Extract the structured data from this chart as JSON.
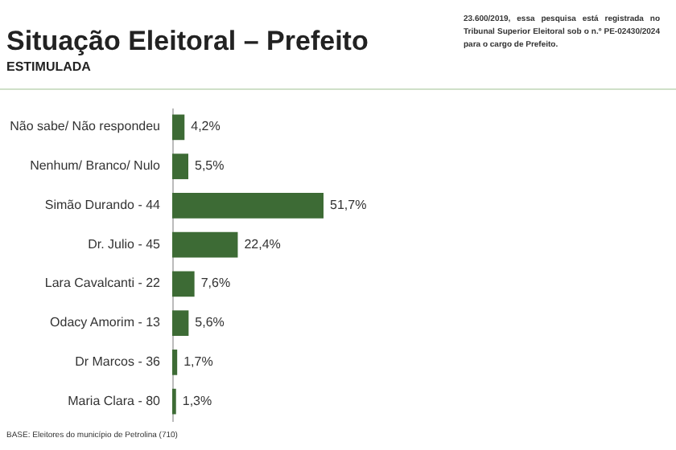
{
  "chart_data": {
    "type": "bar",
    "orientation": "horizontal",
    "title": "Situação Eleitoral – Prefeito",
    "subtitle": "ESTIMULADA",
    "categories": [
      "Não sabe/ Não respondeu",
      "Nenhum/ Branco/ Nulo",
      "Simão Durando - 44",
      "Dr. Julio - 45",
      "Lara Cavalcanti - 22",
      "Odacy Amorim - 13",
      "Dr Marcos - 36",
      "Maria Clara - 80"
    ],
    "values": [
      4.2,
      5.5,
      51.7,
      22.4,
      7.6,
      5.6,
      1.7,
      1.3
    ],
    "value_labels": [
      "4,2%",
      "5,5%",
      "51,7%",
      "22,4%",
      "7,6%",
      "5,6%",
      "1,7%",
      "1,3%"
    ],
    "color": "#3d6b35",
    "annotations": [
      "23.600/2019, essa pesquisa está registrada no Tribunal Superior Eleitoral sob o n.º PE-02430/2024 para o cargo de Prefeito.",
      "BASE: Eleitores do município de Petrolina (710)"
    ]
  }
}
